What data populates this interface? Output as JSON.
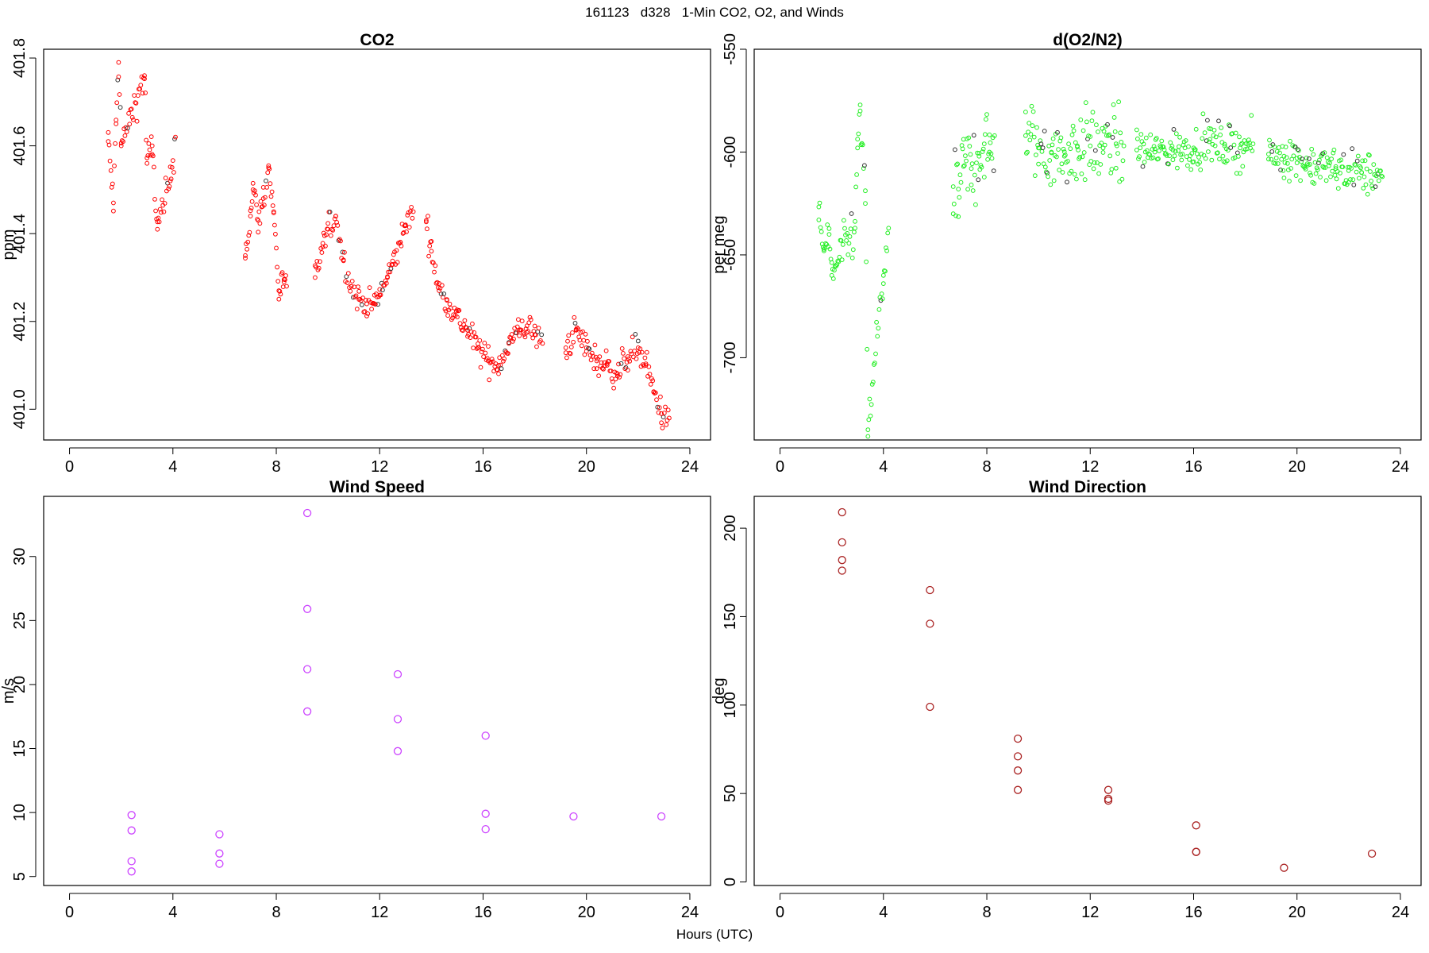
{
  "figure": {
    "title": "161123   d328   1-Min CO2, O2, and Winds",
    "xlabel": "Hours (UTC)"
  },
  "chart_data": [
    {
      "type": "scatter",
      "title": "CO2",
      "xlabel": "",
      "ylabel": "ppm",
      "color": "#ff0000",
      "xlim": [
        -1,
        24.8
      ],
      "ylim": [
        400.93,
        401.82
      ],
      "xticks": [
        0,
        4,
        8,
        12,
        16,
        20,
        24
      ],
      "yticks": [
        401.0,
        401.2,
        401.4,
        401.6,
        401.8
      ],
      "ytick_labels": [
        "401.0",
        "401.2",
        "401.4",
        "401.6",
        "401.8"
      ],
      "segments": [
        {
          "x": [
            1.5,
            1.7,
            1.8,
            1.9,
            2.0,
            2.9,
            3.0,
            3.2,
            3.4,
            3.9,
            4.1
          ],
          "y": [
            401.61,
            401.47,
            401.65,
            401.79,
            401.6,
            401.76,
            401.56,
            401.6,
            401.41,
            401.52,
            401.62
          ],
          "noise": 0.02
        },
        {
          "x": [
            6.8,
            7.0,
            7.1,
            7.3,
            7.5,
            7.7,
            7.9,
            8.1,
            8.3,
            8.4
          ],
          "y": [
            401.35,
            401.44,
            401.5,
            401.43,
            401.48,
            401.55,
            401.45,
            401.27,
            401.29,
            401.28
          ],
          "noise": 0.018
        },
        {
          "x": [
            9.5,
            9.8,
            10.0,
            10.3,
            10.6,
            10.9,
            11.2,
            11.5,
            11.8,
            12.0,
            12.3,
            12.5,
            12.8,
            13.0,
            13.3
          ],
          "y": [
            401.3,
            401.37,
            401.41,
            401.44,
            401.34,
            401.28,
            401.25,
            401.24,
            401.24,
            401.26,
            401.3,
            401.33,
            401.38,
            401.42,
            401.45
          ],
          "noise": 0.015
        },
        {
          "x": [
            13.8,
            14.0,
            14.3,
            14.6,
            15.0,
            15.4,
            15.8,
            16.2,
            16.6,
            17.0,
            17.4,
            17.7,
            18.0,
            18.3
          ],
          "y": [
            401.43,
            401.36,
            401.27,
            401.25,
            401.21,
            401.18,
            401.14,
            401.11,
            401.1,
            401.15,
            401.18,
            401.19,
            401.17,
            401.15
          ],
          "noise": 0.016
        },
        {
          "x": [
            19.2,
            19.6,
            20.0,
            20.4,
            20.8,
            21.2,
            21.6,
            22.0,
            22.3,
            22.6,
            22.9,
            23.2
          ],
          "y": [
            401.14,
            401.18,
            401.14,
            401.11,
            401.1,
            401.08,
            401.12,
            401.14,
            401.1,
            401.04,
            400.99,
            400.98
          ],
          "noise": 0.017
        }
      ],
      "points_per_hour": 28
    },
    {
      "type": "scatter",
      "title": "d(O2/N2)",
      "xlabel": "",
      "ylabel": "per meg",
      "color": "#22ee22",
      "xlim": [
        -1,
        24.8
      ],
      "ylim": [
        -740,
        -550
      ],
      "xticks": [
        0,
        4,
        8,
        12,
        16,
        20,
        24
      ],
      "yticks": [
        -700,
        -650,
        -600,
        -550
      ],
      "ytick_labels": [
        "-700",
        "-650",
        "-600",
        "-550"
      ],
      "segments": [
        {
          "x": [
            1.5,
            1.7,
            1.9,
            2.0,
            2.9,
            3.0,
            3.1,
            3.3,
            3.4,
            4.0,
            4.2
          ],
          "y": [
            -633,
            -648,
            -640,
            -660,
            -637,
            -598,
            -580,
            -625,
            -735,
            -660,
            -637
          ],
          "noise": 6
        },
        {
          "x": [
            6.7,
            6.9,
            7.1,
            7.4,
            7.7,
            7.9,
            8.1,
            8.3
          ],
          "y": [
            -630,
            -618,
            -607,
            -608,
            -602,
            -596,
            -600,
            -592
          ],
          "noise": 10
        },
        {
          "x": [
            9.5,
            10.0,
            10.5,
            11.0,
            11.5,
            12.0,
            12.5,
            13.0,
            13.3
          ],
          "y": [
            -592,
            -598,
            -600,
            -602,
            -597,
            -597,
            -598,
            -596,
            -597
          ],
          "noise": 9
        },
        {
          "x": [
            13.8,
            14.5,
            15.2,
            16.0,
            16.6,
            17.2,
            17.8,
            18.3
          ],
          "y": [
            -599,
            -600,
            -599,
            -598,
            -595,
            -597,
            -598,
            -596
          ],
          "noise": 5
        },
        {
          "x": [
            18.9,
            19.5,
            20.0,
            20.5,
            21.0,
            21.5,
            22.0,
            22.5,
            23.0,
            23.3
          ],
          "y": [
            -601,
            -602,
            -603,
            -606,
            -607,
            -608,
            -609,
            -610,
            -611,
            -612
          ],
          "noise": 5
        }
      ],
      "points_per_hour": 30
    },
    {
      "type": "scatter",
      "title": "Wind Speed",
      "xlabel": "",
      "ylabel": "m/s",
      "color": "#cc44ff",
      "xlim": [
        -1,
        24.8
      ],
      "ylim": [
        4.3,
        34.7
      ],
      "xticks": [
        0,
        4,
        8,
        12,
        16,
        20,
        24
      ],
      "yticks": [
        5,
        10,
        15,
        20,
        25,
        30
      ],
      "ytick_labels": [
        "5",
        "10",
        "15",
        "20",
        "25",
        "30"
      ],
      "x": [
        2.4,
        2.4,
        2.4,
        2.4,
        5.8,
        5.8,
        5.8,
        9.2,
        9.2,
        9.2,
        9.2,
        12.7,
        12.7,
        12.7,
        16.1,
        16.1,
        16.1,
        19.5,
        22.9
      ],
      "y": [
        9.8,
        8.6,
        6.2,
        5.4,
        8.3,
        6.8,
        6.0,
        33.4,
        25.9,
        21.2,
        17.9,
        20.8,
        17.3,
        14.8,
        16.0,
        9.9,
        8.7,
        9.7,
        9.7
      ]
    },
    {
      "type": "scatter",
      "title": "Wind Direction",
      "xlabel": "",
      "ylabel": "deg",
      "color": "#aa2222",
      "xlim": [
        -1,
        24.8
      ],
      "ylim": [
        -2,
        218
      ],
      "xticks": [
        0,
        4,
        8,
        12,
        16,
        20,
        24
      ],
      "yticks": [
        0,
        50,
        100,
        150,
        200
      ],
      "ytick_labels": [
        "0",
        "50",
        "100",
        "150",
        "200"
      ],
      "x": [
        2.4,
        2.4,
        2.4,
        2.4,
        5.8,
        5.8,
        5.8,
        9.2,
        9.2,
        9.2,
        9.2,
        12.7,
        12.7,
        12.7,
        16.1,
        16.1,
        16.1,
        19.5,
        22.9
      ],
      "y": [
        209,
        192,
        182,
        176,
        165,
        146,
        99,
        81,
        71,
        63,
        52,
        52,
        47,
        46,
        32,
        17,
        17,
        8,
        16
      ]
    }
  ]
}
